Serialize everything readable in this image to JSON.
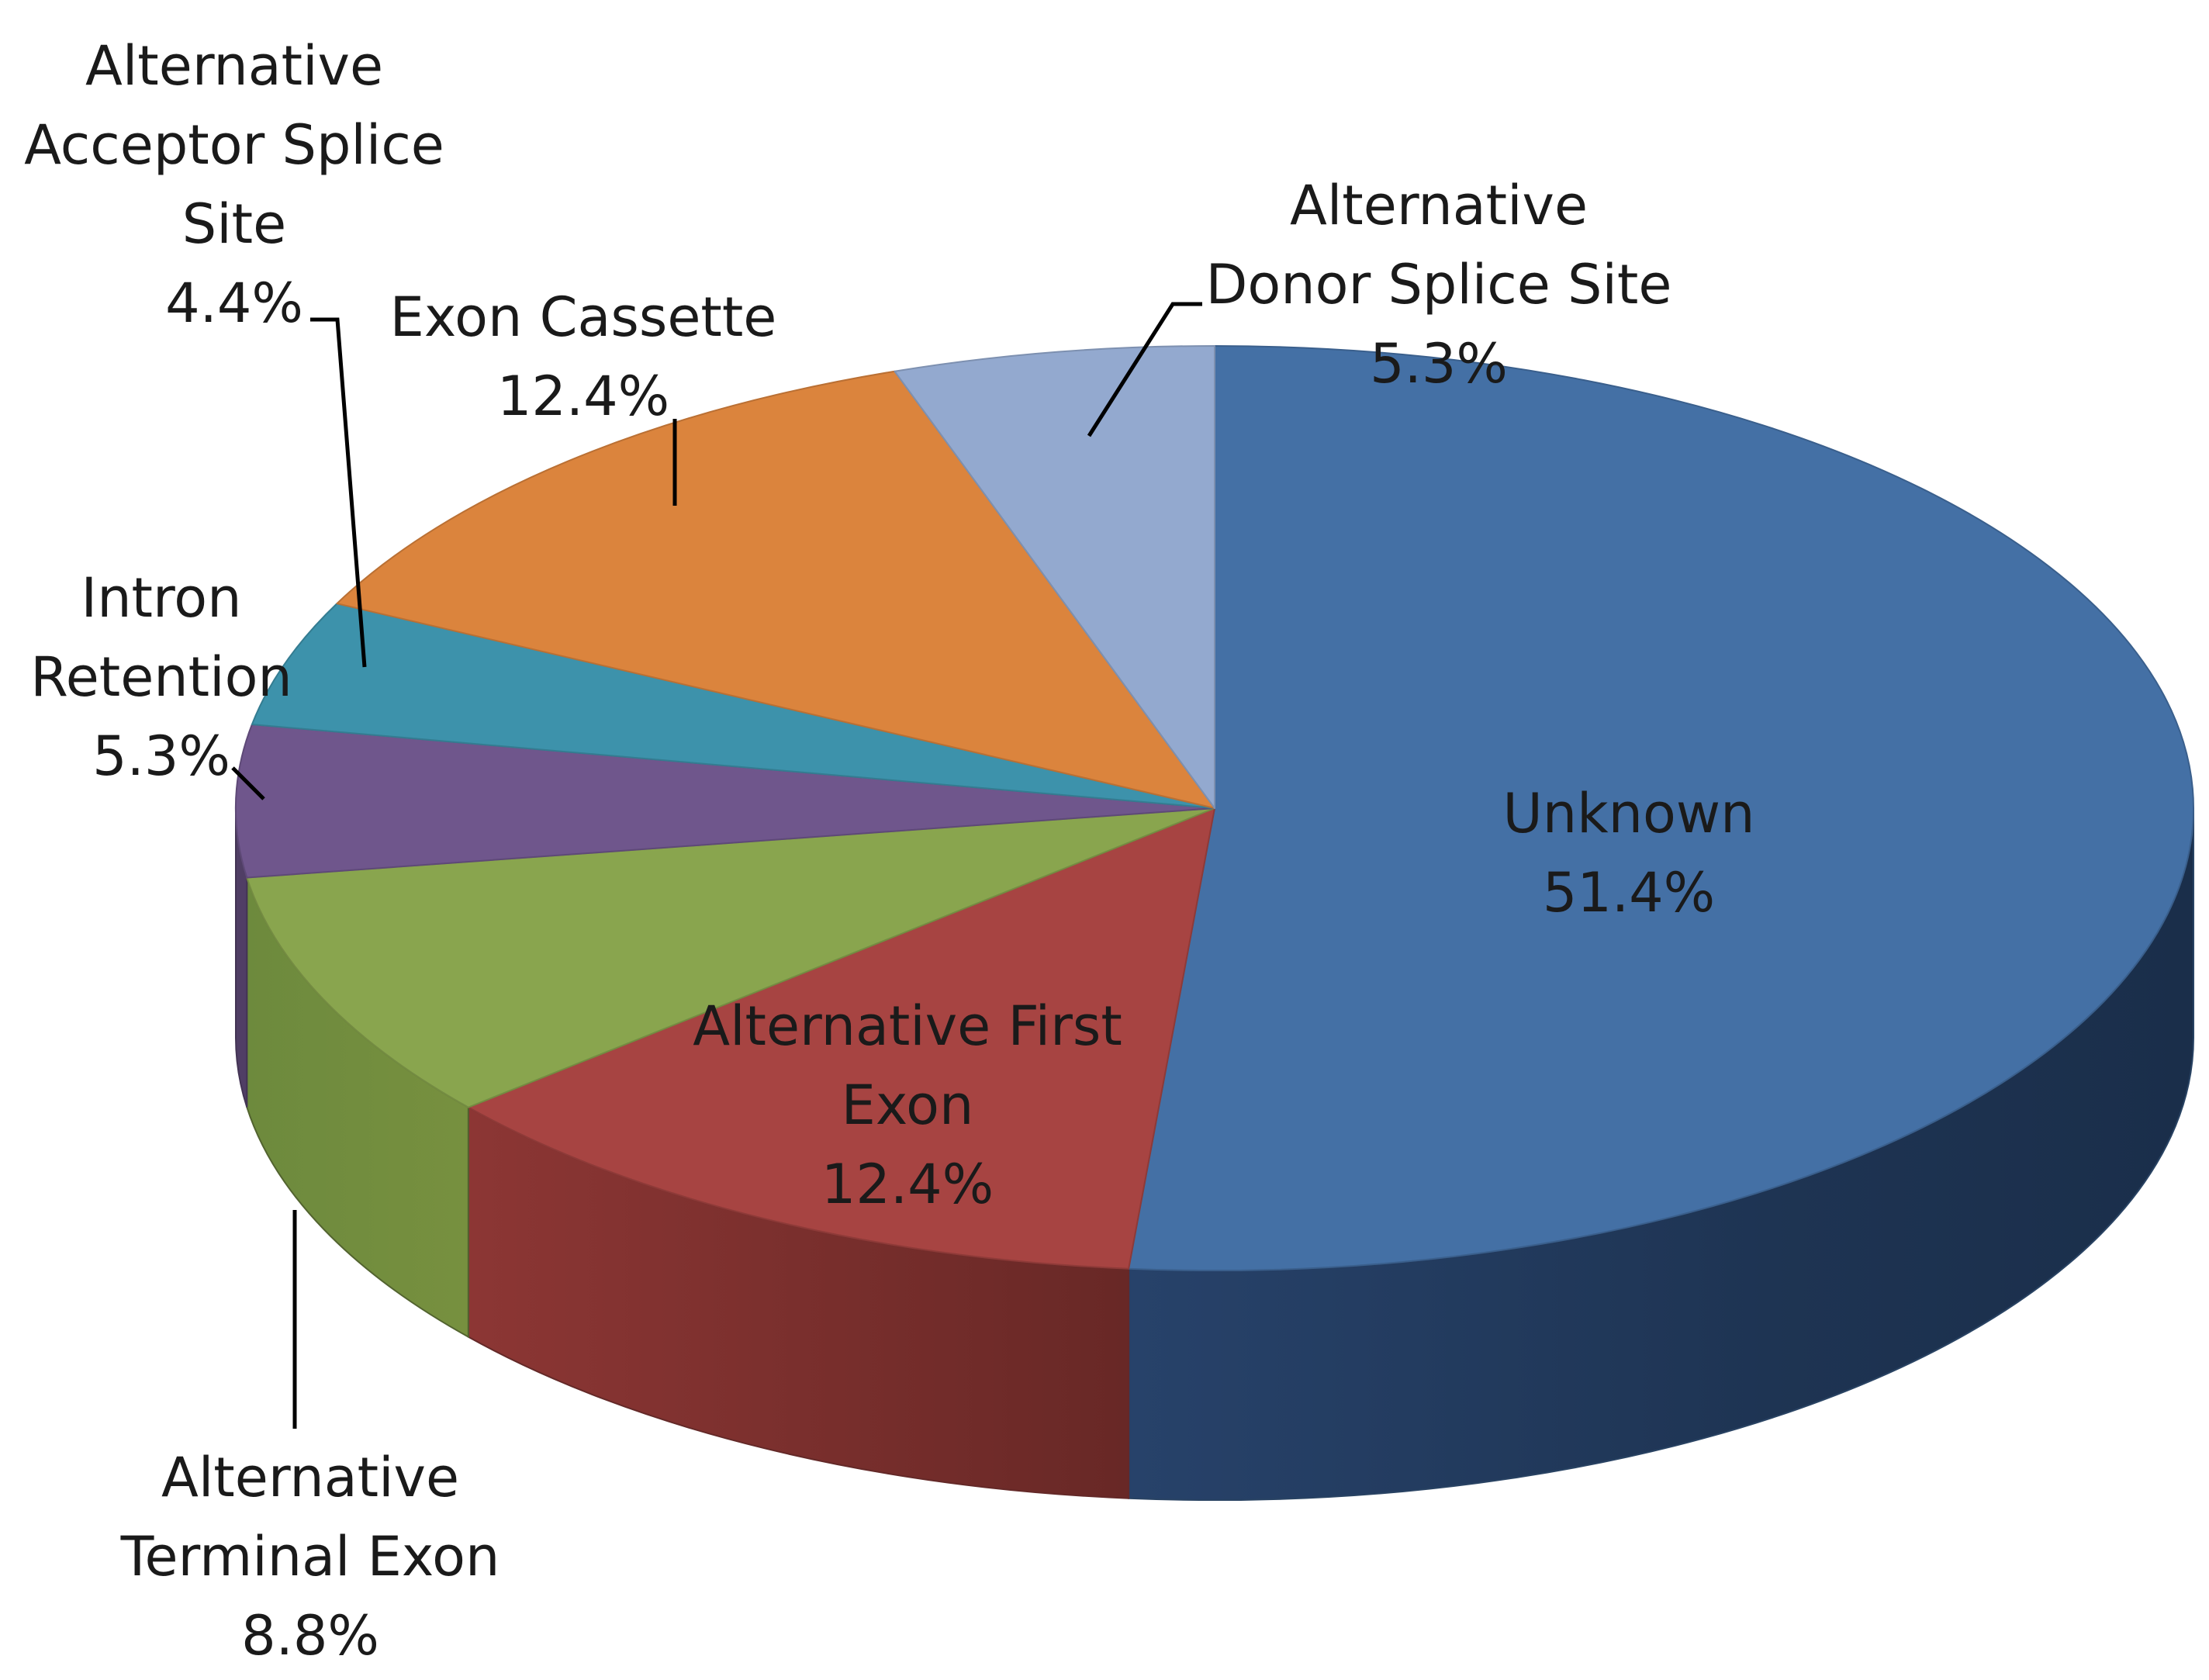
{
  "chart_data": {
    "type": "pie",
    "title": "",
    "style": "3d-exploded-pie-perspective",
    "series": [
      {
        "values": [
          {
            "label": "Unknown",
            "value": 51.4,
            "display": "51.4%",
            "color": "#4470A5"
          },
          {
            "label": "Alternative First Exon",
            "value": 12.4,
            "display": "12.4%",
            "color": "#A74442"
          },
          {
            "label": "Alternative Terminal Exon",
            "value": 8.8,
            "display": "8.8%",
            "color": "#89A54E"
          },
          {
            "label": "Intron Retention",
            "value": 5.3,
            "display": "5.3%",
            "color": "#6F568C"
          },
          {
            "label": "Alternative Acceptor Splice Site",
            "value": 4.4,
            "display": "4.4%",
            "color": "#3D92AB"
          },
          {
            "label": "Exon Cassette",
            "value": 12.4,
            "display": "12.4%",
            "color": "#DB843D"
          },
          {
            "label": "Alternative Donor Splice Site",
            "value": 5.3,
            "display": "5.3%",
            "color": "#93A9CF"
          }
        ]
      }
    ],
    "labels": [
      {
        "slice": "Unknown",
        "lines": [
          "Unknown",
          "51.4%"
        ],
        "position": "inside"
      },
      {
        "slice": "Alternative First Exon",
        "lines": [
          "Alternative First",
          "Exon",
          "12.4%"
        ],
        "position": "inside"
      },
      {
        "slice": "Alternative Terminal Exon",
        "lines": [
          "Alternative",
          "Terminal Exon",
          "8.8%"
        ],
        "position": "outside-bottom"
      },
      {
        "slice": "Intron Retention",
        "lines": [
          "Intron",
          "Retention",
          "5.3%"
        ],
        "position": "outside-left"
      },
      {
        "slice": "Alternative Acceptor Splice Site",
        "lines": [
          "Alternative",
          "Acceptor Splice",
          "Site",
          "4.4%"
        ],
        "position": "outside-top-left"
      },
      {
        "slice": "Exon Cassette",
        "lines": [
          "Exon Cassette",
          "12.4%"
        ],
        "position": "outside-top"
      },
      {
        "slice": "Alternative Donor Splice Site",
        "lines": [
          "Alternative",
          "Donor Splice Site",
          "5.3%"
        ],
        "position": "outside-top-right"
      }
    ],
    "legend": "none"
  }
}
